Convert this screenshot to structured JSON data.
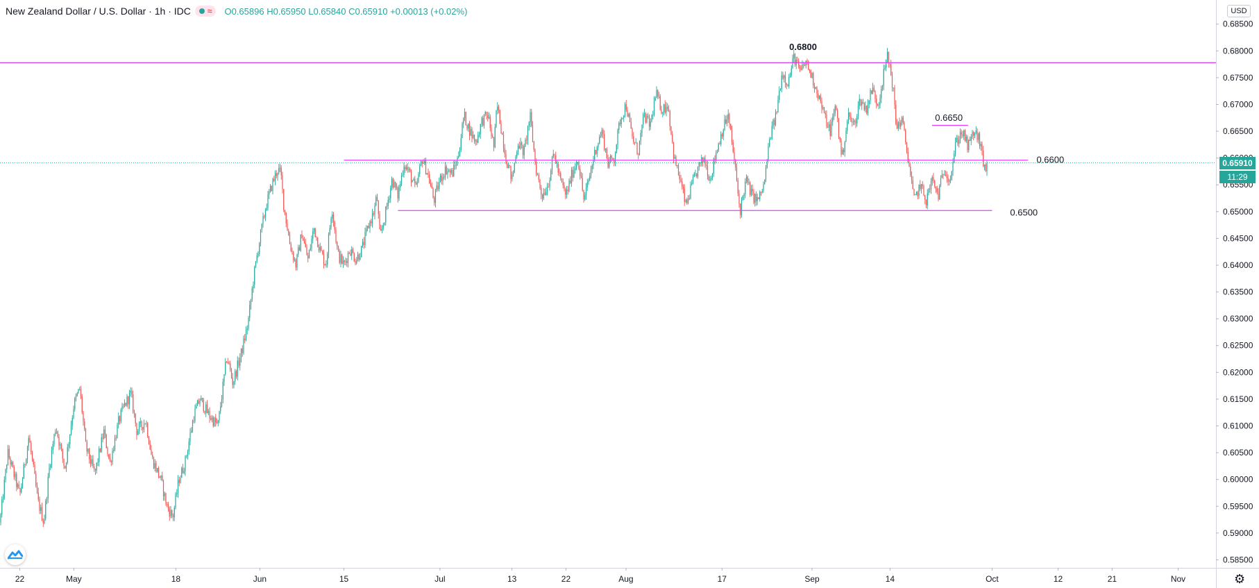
{
  "legend": {
    "symbol": "New Zealand Dollar / U.S. Dollar · 1h · IDC",
    "open": "O0.65896",
    "high": "H0.65950",
    "low": "L0.65840",
    "close": "C0.65910",
    "change": "+0.00013 (+0.02%)"
  },
  "price_axis": {
    "currency": "USD",
    "current_price": "0.65910",
    "countdown": "11:29"
  },
  "icons": [
    "tradingview-logo-icon",
    "gear-icon",
    "indicator-dot-icon",
    "wave-icon"
  ],
  "colors": {
    "up": "#26a69a",
    "down": "#ef5350",
    "levels": "#e040fb",
    "axis_text": "#131722"
  },
  "chart_data": {
    "type": "candlestick",
    "title": "",
    "xlabel": "",
    "ylabel": "",
    "ylim": [
      0.5835,
      0.6895
    ],
    "y_ticks": [
      "0.58500",
      "0.59000",
      "0.59500",
      "0.60000",
      "0.60500",
      "0.61000",
      "0.61500",
      "0.62000",
      "0.62500",
      "0.63000",
      "0.63500",
      "0.64000",
      "0.64500",
      "0.65000",
      "0.65500",
      "0.66000",
      "0.66500",
      "0.67000",
      "0.67500",
      "0.68000",
      "0.68500"
    ],
    "x_ticks": [
      {
        "label": "22",
        "t": 22
      },
      {
        "label": "May",
        "t": 31
      },
      {
        "label": "18",
        "t": 48
      },
      {
        "label": "Jun",
        "t": 62
      },
      {
        "label": "15",
        "t": 76
      },
      {
        "label": "Jul",
        "t": 92
      },
      {
        "label": "13",
        "t": 104
      },
      {
        "label": "22",
        "t": 113
      },
      {
        "label": "Aug",
        "t": 123
      },
      {
        "label": "17",
        "t": 139
      },
      {
        "label": "Sep",
        "t": 154
      },
      {
        "label": "14",
        "t": 167
      },
      {
        "label": "Oct",
        "t": 184
      },
      {
        "label": "12",
        "t": 195
      },
      {
        "label": "21",
        "t": 204
      },
      {
        "label": "Nov",
        "t": 215
      }
    ],
    "xlim": [
      18.7,
      221.3
    ],
    "last_t": 183.2,
    "price_path": [
      [
        18.7,
        0.592
      ],
      [
        20,
        0.605
      ],
      [
        22,
        0.597
      ],
      [
        23.5,
        0.608
      ],
      [
        25,
        0.596
      ],
      [
        26,
        0.592
      ],
      [
        27,
        0.603
      ],
      [
        28,
        0.61
      ],
      [
        29.5,
        0.602
      ],
      [
        31,
        0.614
      ],
      [
        32,
        0.617
      ],
      [
        33,
        0.606
      ],
      [
        34.5,
        0.601
      ],
      [
        36,
        0.609
      ],
      [
        37,
        0.603
      ],
      [
        38.5,
        0.611
      ],
      [
        39.5,
        0.614
      ],
      [
        40.5,
        0.616
      ],
      [
        41.5,
        0.609
      ],
      [
        43,
        0.611
      ],
      [
        44,
        0.604
      ],
      [
        45.5,
        0.6
      ],
      [
        46.5,
        0.595
      ],
      [
        47.5,
        0.593
      ],
      [
        48.5,
        0.6
      ],
      [
        49.5,
        0.603
      ],
      [
        51,
        0.612
      ],
      [
        52,
        0.615
      ],
      [
        53.5,
        0.612
      ],
      [
        55,
        0.61
      ],
      [
        56.5,
        0.623
      ],
      [
        57.5,
        0.618
      ],
      [
        59,
        0.624
      ],
      [
        60,
        0.629
      ],
      [
        61,
        0.638
      ],
      [
        62,
        0.645
      ],
      [
        63,
        0.651
      ],
      [
        64,
        0.655
      ],
      [
        65,
        0.658
      ],
      [
        65.5,
        0.657
      ],
      [
        66,
        0.651
      ],
      [
        67,
        0.644
      ],
      [
        68,
        0.64
      ],
      [
        69,
        0.646
      ],
      [
        70,
        0.641
      ],
      [
        71,
        0.647
      ],
      [
        72,
        0.643
      ],
      [
        73,
        0.64
      ],
      [
        74,
        0.651
      ],
      [
        75,
        0.642
      ],
      [
        76,
        0.64
      ],
      [
        77,
        0.643
      ],
      [
        78,
        0.641
      ],
      [
        79,
        0.643
      ],
      [
        80,
        0.647
      ],
      [
        81,
        0.65
      ],
      [
        81.5,
        0.653
      ],
      [
        82,
        0.645
      ],
      [
        83,
        0.65
      ],
      [
        84,
        0.656
      ],
      [
        85,
        0.653
      ],
      [
        86,
        0.659
      ],
      [
        87,
        0.657
      ],
      [
        88,
        0.654
      ],
      [
        89,
        0.66
      ],
      [
        90,
        0.657
      ],
      [
        91,
        0.652
      ],
      [
        92,
        0.656
      ],
      [
        93,
        0.658
      ],
      [
        94,
        0.657
      ],
      [
        95,
        0.66
      ],
      [
        96,
        0.668
      ],
      [
        97,
        0.665
      ],
      [
        98,
        0.663
      ],
      [
        99,
        0.667
      ],
      [
        100,
        0.668
      ],
      [
        101,
        0.662
      ],
      [
        101.5,
        0.67
      ],
      [
        102,
        0.667
      ],
      [
        103,
        0.66
      ],
      [
        104,
        0.656
      ],
      [
        105,
        0.663
      ],
      [
        106,
        0.661
      ],
      [
        107,
        0.668
      ],
      [
        108,
        0.658
      ],
      [
        109,
        0.653
      ],
      [
        110,
        0.655
      ],
      [
        111,
        0.661
      ],
      [
        112,
        0.656
      ],
      [
        113,
        0.653
      ],
      [
        114,
        0.657
      ],
      [
        115,
        0.66
      ],
      [
        116,
        0.652
      ],
      [
        117,
        0.657
      ],
      [
        118,
        0.662
      ],
      [
        119,
        0.665
      ],
      [
        120,
        0.659
      ],
      [
        121,
        0.66
      ],
      [
        122,
        0.667
      ],
      [
        123,
        0.67
      ],
      [
        124,
        0.664
      ],
      [
        125,
        0.661
      ],
      [
        126,
        0.668
      ],
      [
        127,
        0.666
      ],
      [
        128,
        0.672
      ],
      [
        129,
        0.669
      ],
      [
        130,
        0.67
      ],
      [
        131,
        0.66
      ],
      [
        132,
        0.656
      ],
      [
        133,
        0.651
      ],
      [
        134,
        0.655
      ],
      [
        135,
        0.658
      ],
      [
        136,
        0.66
      ],
      [
        137,
        0.656
      ],
      [
        138,
        0.661
      ],
      [
        139,
        0.665
      ],
      [
        140,
        0.668
      ],
      [
        141,
        0.66
      ],
      [
        142,
        0.65
      ],
      [
        143,
        0.656
      ],
      [
        144,
        0.653
      ],
      [
        145,
        0.652
      ],
      [
        146,
        0.655
      ],
      [
        147,
        0.664
      ],
      [
        148,
        0.668
      ],
      [
        149,
        0.676
      ],
      [
        150,
        0.674
      ],
      [
        151,
        0.679
      ],
      [
        152,
        0.676
      ],
      [
        153,
        0.678
      ],
      [
        154,
        0.675
      ],
      [
        155,
        0.672
      ],
      [
        156,
        0.668
      ],
      [
        157,
        0.665
      ],
      [
        158,
        0.67
      ],
      [
        158.5,
        0.664
      ],
      [
        159,
        0.66
      ],
      [
        160,
        0.668
      ],
      [
        161,
        0.666
      ],
      [
        162,
        0.671
      ],
      [
        163,
        0.669
      ],
      [
        164,
        0.673
      ],
      [
        165,
        0.67
      ],
      [
        166,
        0.676
      ],
      [
        166.5,
        0.679
      ],
      [
        167,
        0.677
      ],
      [
        167.5,
        0.673
      ],
      [
        168,
        0.666
      ],
      [
        169,
        0.667
      ],
      [
        170,
        0.66
      ],
      [
        171,
        0.652
      ],
      [
        172,
        0.655
      ],
      [
        173,
        0.652
      ],
      [
        174,
        0.656
      ],
      [
        175,
        0.653
      ],
      [
        176,
        0.658
      ],
      [
        177,
        0.656
      ],
      [
        178,
        0.663
      ],
      [
        179,
        0.665
      ],
      [
        180,
        0.662
      ],
      [
        181,
        0.665
      ],
      [
        182,
        0.663
      ],
      [
        182.5,
        0.659
      ],
      [
        183,
        0.658
      ],
      [
        183.2,
        0.659
      ]
    ],
    "levels": [
      {
        "value": 0.6778,
        "t_start": 18.7,
        "t_end": 221.3,
        "label": "0.6800",
        "label_t": 152.5,
        "label_price": 0.6807,
        "bold": true
      },
      {
        "value": 0.6661,
        "t_start": 174,
        "t_end": 180,
        "label": "0.6650",
        "label_t": 176.8,
        "label_price": 0.6675,
        "bold": false
      },
      {
        "value": 0.6596,
        "t_start": 76,
        "t_end": 190,
        "label": "0.6600",
        "label_t": 193.7,
        "label_price": 0.6596,
        "bold": false
      },
      {
        "value": 0.6502,
        "t_start": 85,
        "t_end": 184,
        "label": "0.6500",
        "label_t": 189.3,
        "label_price": 0.6498,
        "bold": false
      }
    ]
  }
}
